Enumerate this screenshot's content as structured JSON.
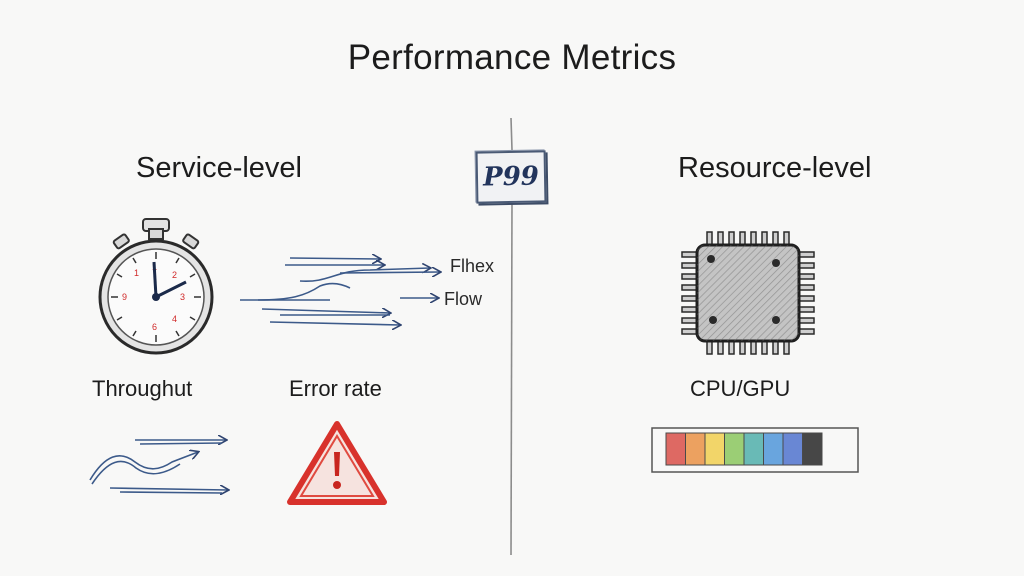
{
  "title": "Performance Metrics",
  "badge": "P99",
  "left_section": {
    "heading": "Service-level",
    "labels": {
      "throughput": "Throughut",
      "error_rate": "Error rate",
      "flex": "Flhex",
      "flow": "Flow"
    },
    "icons": [
      "stopwatch-icon",
      "flow-arrows-icon",
      "wavy-arrows-icon",
      "warning-triangle-icon"
    ]
  },
  "right_section": {
    "heading": "Resource-level",
    "labels": {
      "cpu_gpu": "CPU/GPU"
    },
    "icons": [
      "chip-icon",
      "utilization-bar-icon"
    ]
  },
  "colors": {
    "divider": "#8c8c8c",
    "warning": "#d8322c",
    "arrows": "#3c5a8a",
    "utilization": [
      "#d63a32",
      "#e8842e",
      "#f0c93a",
      "#7cc04a",
      "#3aa6a0",
      "#3a8ad6",
      "#3a62c8",
      "#333333"
    ]
  }
}
